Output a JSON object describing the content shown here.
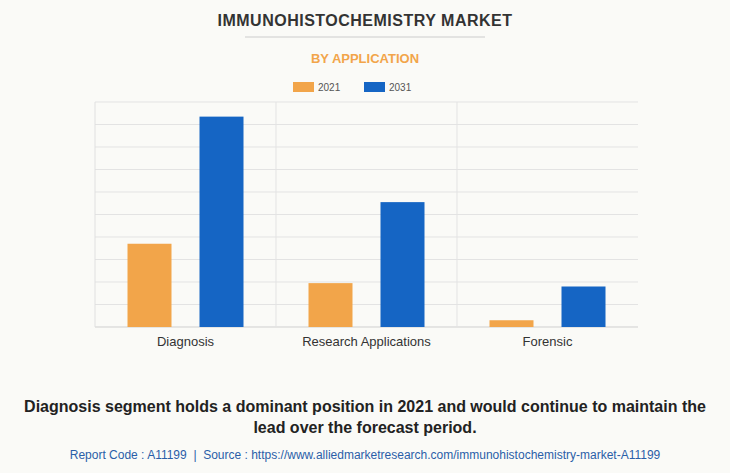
{
  "chart_data": {
    "type": "bar",
    "title": "IMMUNOHISTOCHEMISTRY MARKET",
    "subtitle": "BY APPLICATION",
    "categories": [
      "Diagnosis",
      "Research Applications",
      "Forensic"
    ],
    "series": [
      {
        "name": "2021",
        "color": "#f2a54a",
        "values": [
          3.7,
          1.95,
          0.3
        ]
      },
      {
        "name": "2031",
        "color": "#1565c4",
        "values": [
          9.35,
          5.55,
          1.8
        ]
      }
    ],
    "ylim": [
      0,
      10
    ],
    "yticks": [
      0,
      1,
      2,
      3,
      4,
      5,
      6,
      7,
      8,
      9,
      10
    ],
    "grid": true,
    "tick_labels": "x",
    "legend": "top",
    "annotations": [
      "Diagnosis segment holds a dominant position in 2021 and would continue to maintain the lead over the forecast period.",
      "Report Code : A11199  |  Source : https://www.alliedmarketresearch.com/immunohistochemistry-market-A11199"
    ]
  }
}
